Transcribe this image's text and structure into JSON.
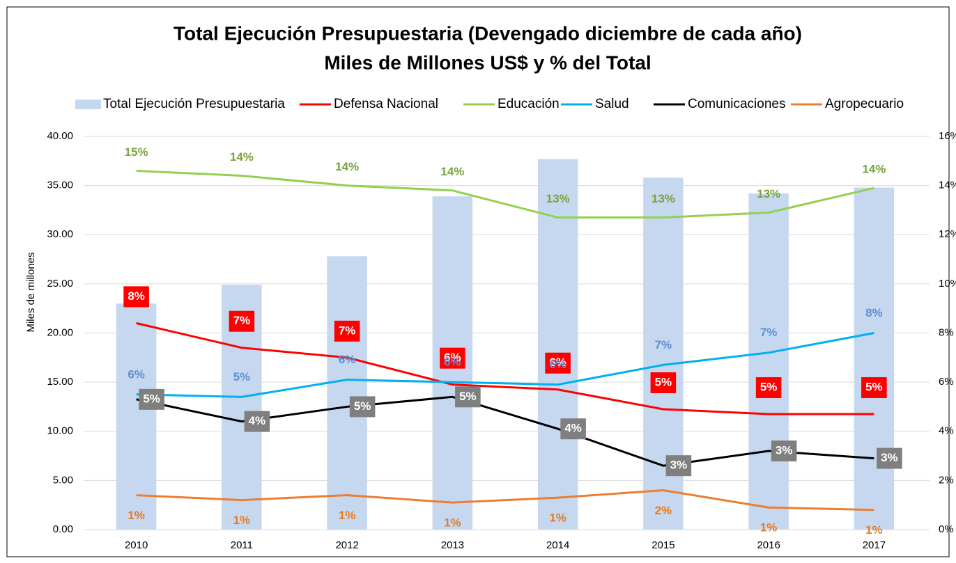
{
  "chart_data": {
    "type": "combo",
    "title": "Total Ejecución Presupuestaria (Devengado diciembre de cada año)",
    "subtitle": "Miles de Millones US$ y % del Total",
    "y_label": "Miles de millones",
    "categories": [
      "2010",
      "2011",
      "2012",
      "2013",
      "2014",
      "2015",
      "2016",
      "2017"
    ],
    "series": [
      {
        "name": "Total Ejecución Presupuestaria",
        "type": "bar",
        "color": "#c6d8ef",
        "values": [
          23.0,
          24.9,
          27.8,
          33.9,
          37.7,
          35.8,
          34.2,
          34.8
        ]
      },
      {
        "name": "Defensa Nacional",
        "type": "line",
        "axis": "y2",
        "color": "#ff0000",
        "label_color": "#ffffff",
        "label_background": "#ff0000",
        "values": [
          8.4,
          7.4,
          7.0,
          5.9,
          5.7,
          4.9,
          4.7,
          4.7
        ],
        "value_labels": [
          "8%",
          "7%",
          "7%",
          "6%",
          "6%",
          "5%",
          "5%",
          "5%"
        ]
      },
      {
        "name": "Educación",
        "type": "line",
        "axis": "y2",
        "color": "#92d050",
        "label_color": "#77a33a",
        "values": [
          14.6,
          14.4,
          14.0,
          13.8,
          12.7,
          12.7,
          12.9,
          13.9
        ],
        "value_labels": [
          "15%",
          "14%",
          "14%",
          "14%",
          "13%",
          "13%",
          "13%",
          "14%"
        ]
      },
      {
        "name": "Salud",
        "type": "line",
        "axis": "y2",
        "color": "#00b0f0",
        "label_color": "#5b8fd6",
        "values": [
          5.5,
          5.4,
          6.1,
          6.0,
          5.9,
          6.7,
          7.2,
          8.0
        ],
        "value_labels": [
          "6%",
          "5%",
          "6%",
          "6%",
          "6%",
          "7%",
          "7%",
          "8%"
        ]
      },
      {
        "name": "Comunicaciones",
        "type": "line",
        "axis": "y2",
        "color": "#000000",
        "label_color": "#ffffff",
        "label_background": "#7f7f7f",
        "values": [
          5.3,
          4.4,
          5.0,
          5.4,
          4.1,
          2.6,
          3.2,
          2.9
        ],
        "value_labels": [
          "5%",
          "4%",
          "5%",
          "5%",
          "4%",
          "3%",
          "3%",
          "3%"
        ]
      },
      {
        "name": "Agropecuario",
        "type": "line",
        "axis": "y2",
        "color": "#ed7d31",
        "label_color": "#e97a1e",
        "values": [
          1.4,
          1.2,
          1.4,
          1.1,
          1.3,
          1.6,
          0.9,
          0.8
        ],
        "value_labels": [
          "1%",
          "1%",
          "1%",
          "1%",
          "1%",
          "2%",
          "1%",
          "1%"
        ]
      }
    ],
    "ylim": [
      0,
      40
    ],
    "yticks": [
      {
        "value": 0,
        "label": "0.00"
      },
      {
        "value": 5,
        "label": "5.00"
      },
      {
        "value": 10,
        "label": "10.00"
      },
      {
        "value": 15,
        "label": "15.00"
      },
      {
        "value": 20,
        "label": "20.00"
      },
      {
        "value": 25,
        "label": "25.00"
      },
      {
        "value": 30,
        "label": "30.00"
      },
      {
        "value": 35,
        "label": "35.00"
      },
      {
        "value": 40,
        "label": "40.00"
      }
    ],
    "y2lim": [
      0,
      16
    ],
    "y2ticks": [
      {
        "value": 0,
        "label": "0%"
      },
      {
        "value": 2,
        "label": "2%"
      },
      {
        "value": 4,
        "label": "4%"
      },
      {
        "value": 6,
        "label": "6%"
      },
      {
        "value": 8,
        "label": "8%"
      },
      {
        "value": 10,
        "label": "10%"
      },
      {
        "value": 12,
        "label": "12%"
      },
      {
        "value": 14,
        "label": "14%"
      },
      {
        "value": 16,
        "label": "16%"
      }
    ],
    "grid": true,
    "legend": "top"
  }
}
